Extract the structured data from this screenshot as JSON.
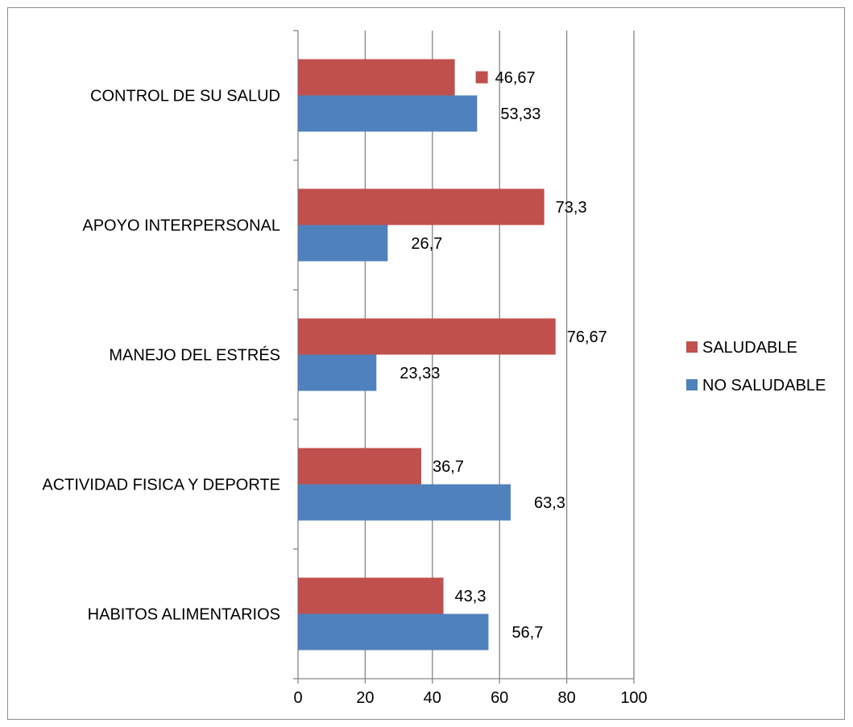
{
  "chart_data": {
    "type": "bar",
    "orientation": "horizontal",
    "categories": [
      "CONTROL DE SU SALUD",
      "APOYO INTERPERSONAL",
      "MANEJO DEL ESTRÉS",
      "ACTIVIDAD FISICA Y DEPORTE",
      "HABITOS ALIMENTARIOS"
    ],
    "series": [
      {
        "name": "SALUDABLE",
        "color": "#c0504d",
        "values": [
          46.67,
          73.3,
          76.67,
          36.7,
          43.3
        ],
        "labels": [
          "46,67",
          "73,3",
          "76,67",
          "36,7",
          "43,3"
        ]
      },
      {
        "name": "NO SALUDABLE",
        "color": "#4f81bd",
        "values": [
          53.33,
          26.7,
          23.33,
          63.3,
          56.7
        ],
        "labels": [
          "53,33",
          "26,7",
          "23,33",
          "63,3",
          "56,7"
        ]
      }
    ],
    "xlim": [
      0,
      100
    ],
    "xticks": [
      0,
      20,
      40,
      60,
      80,
      100
    ],
    "xtick_labels": [
      "0",
      "20",
      "40",
      "60",
      "80",
      "100"
    ],
    "grid": true,
    "legend_position": "right"
  }
}
